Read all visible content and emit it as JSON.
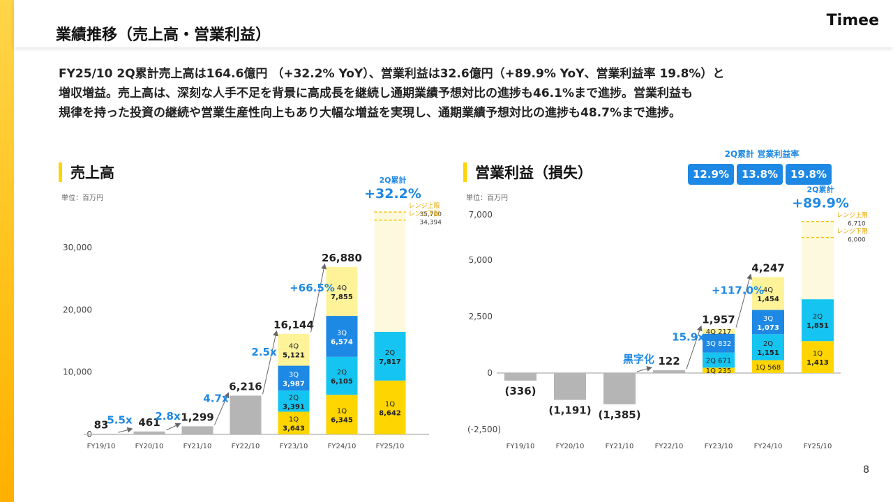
{
  "header": {
    "title": "業績推移（売上高・営業利益）",
    "logo": "Timee"
  },
  "summary": [
    "FY25/10 2Q累計売上高は164.6億円 （+32.2% YoY）、営業利益は32.6億円（+89.9% YoY、営業利益率 19.8%）と",
    "増収増益。売上高は、深刻な人手不足を背景に高成長を継続し通期業績予想対比の進捗も46.1%まで進捗。営業利益も",
    "規律を持った投資の継続や営業生産性向上もあり大幅な増益を実現し、通期業績予想対比の進捗も48.7%まで進捗。"
  ],
  "page_number": "8",
  "margin_panel": {
    "label": "2Q累計 営業利益率",
    "values": [
      "12.9%",
      "13.8%",
      "19.8%"
    ]
  },
  "colors": {
    "q1": "#ffd500",
    "q2": "#15c4f0",
    "q3": "#1e88e5",
    "q4": "#fff39a",
    "gray": "#b5b5b5",
    "blue_text": "#1e88e5",
    "range": "#fdf9de",
    "range_line": "#f5c400"
  },
  "chart_data": [
    {
      "type": "bar",
      "title": "売上高",
      "unit": "単位：百万円",
      "categories": [
        "FY19/10",
        "FY20/10",
        "FY21/10",
        "FY22/10",
        "FY23/10",
        "FY24/10",
        "FY25/10"
      ],
      "yticks": [
        "0",
        "10,000",
        "20,000",
        "30,000"
      ],
      "ylim": [
        0,
        40000
      ],
      "totals": [
        83,
        461,
        1299,
        6216,
        16144,
        26880,
        null
      ],
      "total_labels": [
        "83",
        "461",
        "1,299",
        "6,216",
        "16,144",
        "26,880",
        ""
      ],
      "quarters": {
        "FY23/10": [
          {
            "q": "1Q",
            "v": 3643,
            "label": "3,643"
          },
          {
            "q": "2Q",
            "v": 3391,
            "label": "3,391"
          },
          {
            "q": "3Q",
            "v": 3987,
            "label": "3,987"
          },
          {
            "q": "4Q",
            "v": 5121,
            "label": "5,121"
          }
        ],
        "FY24/10": [
          {
            "q": "1Q",
            "v": 6345,
            "label": "6,345"
          },
          {
            "q": "2Q",
            "v": 6105,
            "label": "6,105"
          },
          {
            "q": "3Q",
            "v": 6574,
            "label": "6,574"
          },
          {
            "q": "4Q",
            "v": 7855,
            "label": "7,855"
          }
        ],
        "FY25/10": [
          {
            "q": "1Q",
            "v": 8642,
            "label": "8,642"
          },
          {
            "q": "2Q",
            "v": 7817,
            "label": "7,817"
          }
        ]
      },
      "growth": [
        {
          "between": [
            0,
            1
          ],
          "label": "5.5x"
        },
        {
          "between": [
            1,
            2
          ],
          "label": "2.8x"
        },
        {
          "between": [
            2,
            3
          ],
          "label": "4.7x"
        },
        {
          "between": [
            3,
            4
          ],
          "label": "2.5x"
        },
        {
          "between": [
            4,
            5
          ],
          "label": "+66.5%"
        }
      ],
      "cumulative": {
        "label": "2Q累計",
        "value": "+32.2%"
      },
      "range": {
        "upper_label": "レンジ上限",
        "upper": 35700,
        "upper_text": "35,700",
        "lower_label": "レンジ下限",
        "lower": 34394,
        "lower_text": "34,394"
      }
    },
    {
      "type": "bar",
      "title": "営業利益（損失）",
      "unit": "単位：百万円",
      "categories": [
        "FY19/10",
        "FY20/10",
        "FY21/10",
        "FY22/10",
        "FY23/10",
        "FY24/10",
        "FY25/10"
      ],
      "yticks": [
        "(-2,500)",
        "0",
        "2,500",
        "5,000",
        "7,000"
      ],
      "ytick_values": [
        -2500,
        0,
        2500,
        5000,
        7000
      ],
      "ylim": [
        -2500,
        7000
      ],
      "totals": [
        -336,
        -1191,
        -1385,
        122,
        1957,
        4247,
        null
      ],
      "total_labels": [
        "(336)",
        "(1,191)",
        "(1,385)",
        "122",
        "1,957",
        "4,247",
        ""
      ],
      "quarters": {
        "FY23/10": [
          {
            "q": "1Q",
            "v": 235,
            "label": "1Q 235"
          },
          {
            "q": "2Q",
            "v": 671,
            "label": "2Q 671"
          },
          {
            "q": "3Q",
            "v": 832,
            "label": "3Q 832"
          },
          {
            "q": "4Q",
            "v": 217,
            "label": "4Q 217"
          }
        ],
        "FY24/10": [
          {
            "q": "1Q",
            "v": 568,
            "label": "1Q 568"
          },
          {
            "q": "2Q",
            "v": 1151,
            "label": "1,151"
          },
          {
            "q": "3Q",
            "v": 1073,
            "label": "1,073"
          },
          {
            "q": "4Q",
            "v": 1454,
            "label": "1,454"
          }
        ],
        "FY25/10": [
          {
            "q": "1Q",
            "v": 1413,
            "label": "1,413"
          },
          {
            "q": "2Q",
            "v": 1851,
            "label": "1,851"
          }
        ]
      },
      "growth": [
        {
          "between": [
            2,
            3
          ],
          "label": "黒字化"
        },
        {
          "between": [
            3,
            4
          ],
          "label": "15.9x"
        },
        {
          "between": [
            4,
            5
          ],
          "label": "+117.0%"
        }
      ],
      "cumulative": {
        "label": "2Q累計",
        "value": "+89.9%"
      },
      "range": {
        "upper_label": "レンジ上限",
        "upper": 6710,
        "upper_text": "6,710",
        "lower_label": "レンジ下限",
        "lower": 6000,
        "lower_text": "6,000"
      }
    }
  ]
}
